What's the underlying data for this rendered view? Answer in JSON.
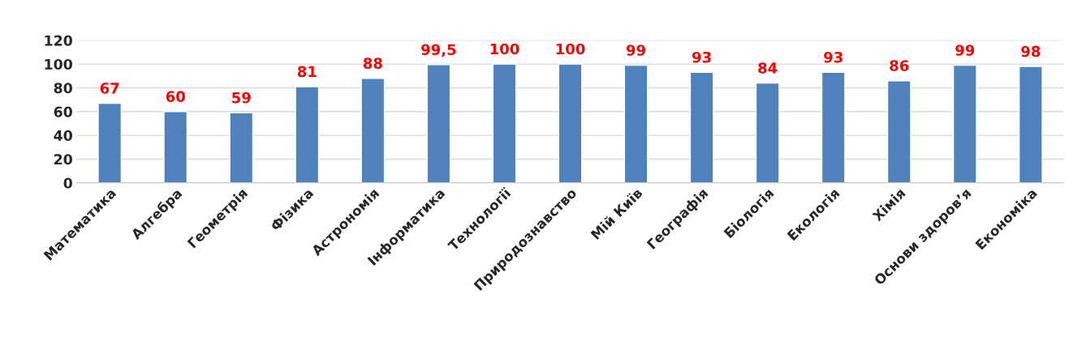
{
  "chart_data": {
    "type": "bar",
    "categories": [
      "Математика",
      "Алгебра",
      "Геометрія",
      "Фізика",
      "Астрономія",
      "Інформатика",
      "Технології",
      "Природознавство",
      "Мій Київ",
      "Географія",
      "Біологія",
      "Екологія",
      "Хімія",
      "Основи здоров’я",
      "Економіка"
    ],
    "values": [
      67,
      60,
      59,
      81,
      88,
      99.5,
      100,
      100,
      99,
      93,
      84,
      93,
      86,
      99,
      98
    ],
    "value_labels": [
      "67",
      "60",
      "59",
      "81",
      "88",
      "99,5",
      "100",
      "100",
      "99",
      "93",
      "84",
      "93",
      "86",
      "99",
      "98"
    ],
    "color": "#4f81bd",
    "ylim": [
      0,
      120
    ],
    "yticks": [
      0,
      20,
      40,
      60,
      80,
      100,
      120
    ],
    "grid": "y",
    "legend": false
  }
}
